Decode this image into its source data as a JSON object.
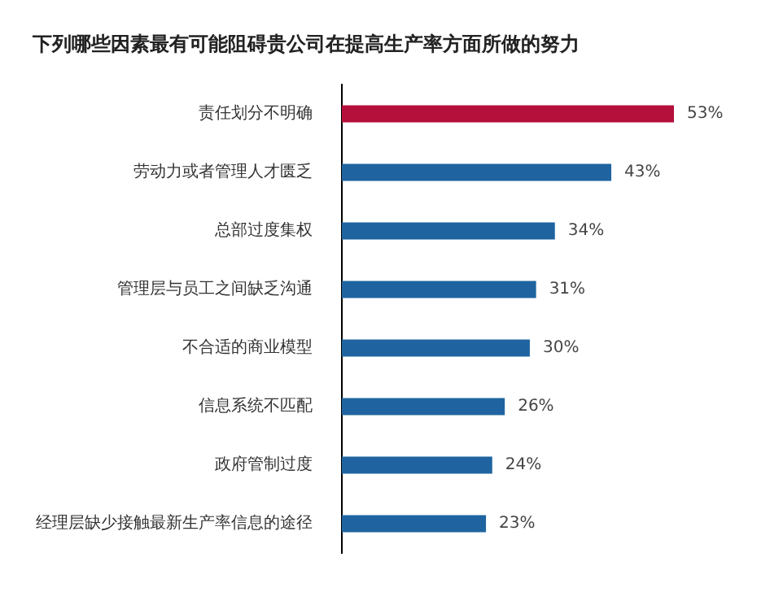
{
  "chart_data": {
    "type": "bar",
    "orientation": "horizontal",
    "title": "下列哪些因素最有可能阻碍贵公司在提高生产率方面所做的努力",
    "categories": [
      "责任划分不明确",
      "劳动力或者管理人才匮乏",
      "总部过度集权",
      "管理层与员工之间缺乏沟通",
      "不合适的商业模型",
      "信息系统不匹配",
      "政府管制过度",
      "经理层缺少接触最新生产率信息的途径"
    ],
    "values": [
      53,
      43,
      34,
      31,
      30,
      26,
      24,
      23
    ],
    "value_labels": [
      "53%",
      "43%",
      "34%",
      "31%",
      "30%",
      "26%",
      "24%",
      "23%"
    ],
    "colors": [
      "#b5103c",
      "#1f64a0",
      "#1f64a0",
      "#1f64a0",
      "#1f64a0",
      "#1f64a0",
      "#1f64a0",
      "#1f64a0"
    ],
    "legend": false
  }
}
